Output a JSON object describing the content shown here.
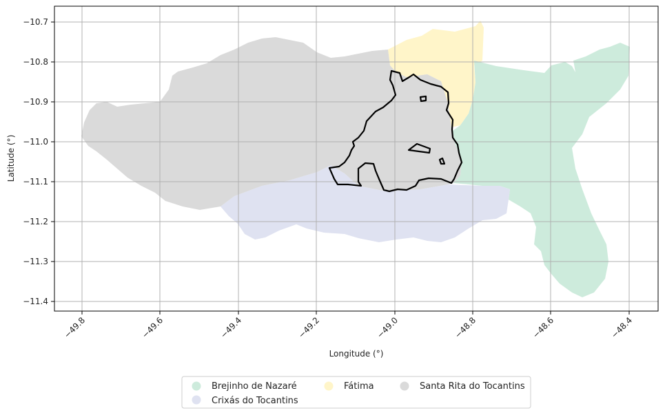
{
  "map": {
    "xlabel": "Longitude (°)",
    "ylabel": "Latitude (°)",
    "x_ticks": [
      -49.8,
      -49.6,
      -49.4,
      -49.2,
      -49.0,
      -48.8,
      -48.6,
      -48.4
    ],
    "x_tick_labels": [
      "−49.8",
      "−49.6",
      "−49.4",
      "−49.2",
      "−49.0",
      "−48.8",
      "−48.6",
      "−48.4"
    ],
    "y_ticks": [
      -10.7,
      -10.8,
      -10.9,
      -11.0,
      -11.1,
      -11.2,
      -11.3,
      -11.4
    ],
    "y_tick_labels": [
      "−10.7",
      "−10.8",
      "−10.9",
      "−11.0",
      "−11.1",
      "−11.2",
      "−11.3",
      "−11.4"
    ],
    "grid": true
  },
  "legend": {
    "placement": "bottom-center",
    "items": [
      {
        "label": "Brejinho de Nazaré",
        "color": "#cdebdc"
      },
      {
        "label": "Crixás do Tocantins",
        "color": "#dfe2f1"
      },
      {
        "label": "Fátima",
        "color": "#fff5c9"
      },
      {
        "label": "Santa Rita do Tocantins",
        "color": "#dadada"
      }
    ]
  },
  "outline_color": "#000000"
}
